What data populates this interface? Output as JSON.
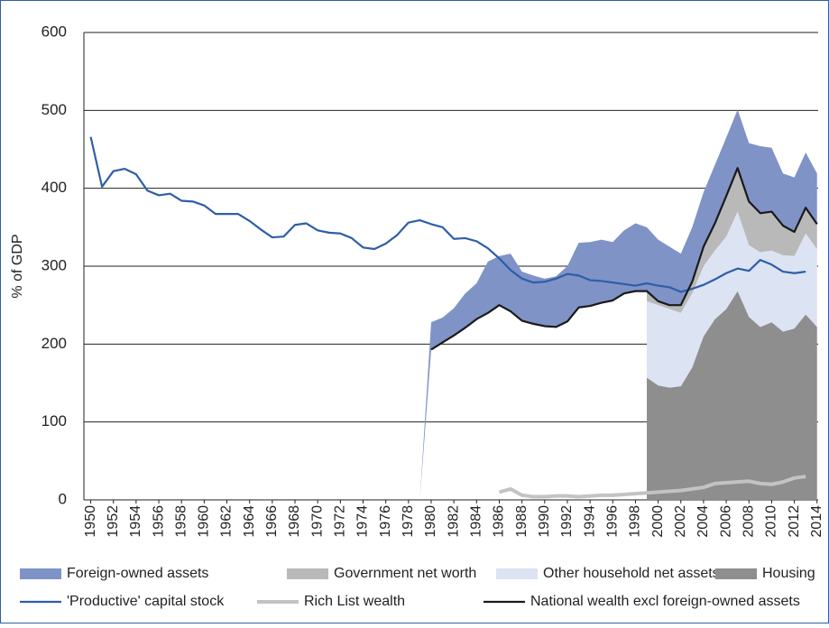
{
  "chart_data": {
    "type": "area",
    "y_label": "% of GDP",
    "x": [
      1950,
      1951,
      1952,
      1953,
      1954,
      1955,
      1956,
      1957,
      1958,
      1959,
      1960,
      1961,
      1962,
      1963,
      1964,
      1965,
      1966,
      1967,
      1968,
      1969,
      1970,
      1971,
      1972,
      1973,
      1974,
      1975,
      1976,
      1977,
      1978,
      1979,
      1980,
      1981,
      1982,
      1983,
      1984,
      1985,
      1986,
      1987,
      1988,
      1989,
      1990,
      1991,
      1992,
      1993,
      1994,
      1995,
      1996,
      1997,
      1998,
      1999,
      2000,
      2001,
      2002,
      2003,
      2004,
      2005,
      2006,
      2007,
      2008,
      2009,
      2010,
      2011,
      2012,
      2013,
      2014
    ],
    "xlim": [
      1949.4,
      2014.1
    ],
    "xticks": [
      1950,
      1952,
      1954,
      1956,
      1958,
      1960,
      1962,
      1964,
      1966,
      1968,
      1970,
      1972,
      1974,
      1976,
      1978,
      1980,
      1982,
      1984,
      1986,
      1988,
      1990,
      1992,
      1994,
      1996,
      1998,
      2000,
      2002,
      2004,
      2006,
      2008,
      2010,
      2012,
      2014
    ],
    "ylim": [
      0,
      600
    ],
    "yticks": [
      0,
      100,
      200,
      300,
      400,
      500,
      600
    ],
    "grid": true,
    "series": [
      {
        "name": "Foreign-owned assets",
        "type": "area",
        "color": "#7f93c7",
        "values": [
          null,
          null,
          null,
          null,
          null,
          null,
          null,
          null,
          null,
          null,
          null,
          null,
          null,
          null,
          null,
          null,
          null,
          null,
          null,
          null,
          null,
          null,
          null,
          null,
          null,
          null,
          null,
          null,
          null,
          0,
          35,
          32,
          35,
          44,
          46,
          66,
          63,
          74,
          63,
          62,
          61,
          65,
          71,
          83,
          82,
          81,
          75,
          81,
          87,
          82,
          79,
          75,
          66,
          70,
          70,
          75,
          75,
          75,
          75,
          86,
          82,
          67,
          70,
          71,
          65
        ]
      },
      {
        "name": "Government net worth",
        "type": "area",
        "color": "#b9b9b9",
        "values": [
          null,
          null,
          null,
          null,
          null,
          null,
          null,
          null,
          null,
          null,
          null,
          null,
          null,
          null,
          null,
          null,
          null,
          null,
          null,
          null,
          null,
          null,
          null,
          null,
          null,
          null,
          null,
          null,
          null,
          null,
          null,
          null,
          null,
          null,
          null,
          null,
          null,
          null,
          null,
          null,
          null,
          null,
          null,
          null,
          null,
          null,
          null,
          null,
          null,
          13,
          5,
          5,
          10,
          15,
          25,
          35,
          52,
          56,
          56,
          50,
          50,
          38,
          31,
          33,
          32
        ]
      },
      {
        "name": "Other household net assets",
        "type": "area",
        "color": "#dce3f2",
        "values": [
          null,
          null,
          null,
          null,
          null,
          null,
          null,
          null,
          null,
          null,
          null,
          null,
          null,
          null,
          null,
          null,
          null,
          null,
          null,
          null,
          null,
          null,
          null,
          null,
          null,
          null,
          null,
          null,
          null,
          null,
          null,
          null,
          null,
          null,
          null,
          null,
          null,
          null,
          null,
          null,
          null,
          null,
          null,
          null,
          null,
          null,
          null,
          null,
          null,
          98,
          103,
          101,
          94,
          95,
          90,
          88,
          93,
          102,
          92,
          96,
          92,
          98,
          93,
          104,
          100
        ]
      },
      {
        "name": "Housing",
        "type": "area",
        "color": "#8e8e8e",
        "values": [
          null,
          null,
          null,
          null,
          null,
          null,
          null,
          null,
          null,
          null,
          null,
          null,
          null,
          null,
          null,
          null,
          null,
          null,
          null,
          null,
          null,
          null,
          null,
          null,
          null,
          null,
          null,
          null,
          null,
          null,
          null,
          null,
          null,
          null,
          null,
          null,
          null,
          null,
          null,
          null,
          null,
          null,
          null,
          null,
          null,
          null,
          null,
          null,
          null,
          157,
          147,
          144,
          146,
          170,
          210,
          232,
          245,
          268,
          235,
          222,
          228,
          216,
          220,
          238,
          222
        ]
      },
      {
        "name": "'Productive' capital stock",
        "type": "line",
        "color": "#2e5ea8",
        "values": [
          466,
          402,
          422,
          425,
          418,
          397,
          391,
          393,
          384,
          383,
          378,
          367,
          367,
          367,
          358,
          347,
          337,
          338,
          353,
          355,
          346,
          343,
          342,
          336,
          324,
          322,
          329,
          340,
          356,
          359,
          354,
          350,
          335,
          336,
          332,
          323,
          310,
          295,
          284,
          279,
          280,
          284,
          290,
          288,
          282,
          281,
          279,
          277,
          275,
          278,
          275,
          273,
          267,
          271,
          276,
          283,
          291,
          297,
          294,
          308,
          302,
          293,
          291,
          293,
          null
        ]
      },
      {
        "name": "Rich List wealth",
        "type": "line",
        "color": "#c3c3c3",
        "values": [
          null,
          null,
          null,
          null,
          null,
          null,
          null,
          null,
          null,
          null,
          null,
          null,
          null,
          null,
          null,
          null,
          null,
          null,
          null,
          null,
          null,
          null,
          null,
          null,
          null,
          null,
          null,
          null,
          null,
          null,
          null,
          null,
          null,
          null,
          null,
          null,
          10,
          14,
          6,
          4,
          4,
          5,
          5,
          4,
          5,
          6,
          6,
          7,
          8,
          9,
          10,
          11,
          12,
          14,
          16,
          21,
          22,
          23,
          24,
          21,
          20,
          23,
          28,
          30,
          null
        ]
      },
      {
        "name": "National wealth excl foreign-owned assets",
        "type": "line",
        "color": "#1a1a1a",
        "values": [
          null,
          null,
          null,
          null,
          null,
          null,
          null,
          null,
          null,
          null,
          null,
          null,
          null,
          null,
          null,
          null,
          null,
          null,
          null,
          null,
          null,
          null,
          null,
          null,
          null,
          null,
          null,
          null,
          null,
          null,
          193,
          202,
          211,
          221,
          232,
          240,
          250,
          242,
          230,
          226,
          223,
          222,
          229,
          247,
          249,
          253,
          256,
          265,
          268,
          268,
          255,
          250,
          250,
          280,
          325,
          355,
          390,
          426,
          383,
          368,
          370,
          352,
          344,
          375,
          354
        ]
      }
    ]
  }
}
